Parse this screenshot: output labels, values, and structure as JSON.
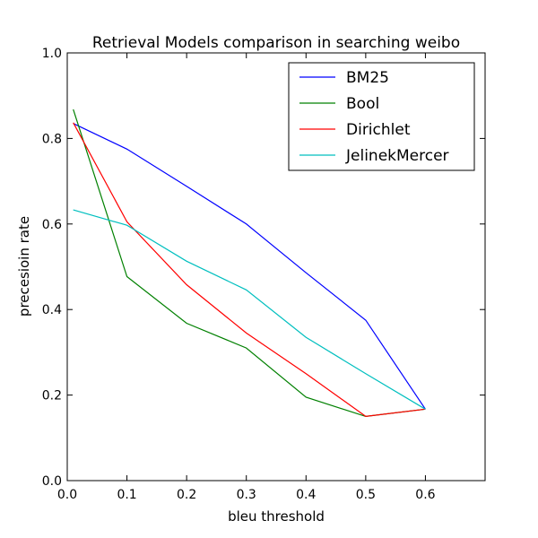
{
  "chart_data": {
    "type": "line",
    "title": "Retrieval Models comparison in searching weibo",
    "xlabel": "bleu threshold",
    "ylabel": "precesioin rate",
    "xlim": [
      0.0,
      0.7
    ],
    "ylim": [
      0.0,
      1.0
    ],
    "xticks": [
      0.0,
      0.1,
      0.2,
      0.3,
      0.4,
      0.5,
      0.6
    ],
    "xtick_labels": [
      "0.0",
      "0.1",
      "0.2",
      "0.3",
      "0.4",
      "0.5",
      "0.6"
    ],
    "yticks": [
      0.0,
      0.2,
      0.4,
      0.6,
      0.8,
      1.0
    ],
    "ytick_labels": [
      "0.0",
      "0.2",
      "0.4",
      "0.6",
      "0.8",
      "1.0"
    ],
    "grid": false,
    "legend_position": "top-right",
    "x": [
      0.01,
      0.1,
      0.2,
      0.3,
      0.4,
      0.5,
      0.6
    ],
    "series": [
      {
        "name": "BM25",
        "color": "#0000ff",
        "values": [
          0.835,
          0.775,
          0.688,
          0.6,
          0.486,
          0.375,
          0.167
        ]
      },
      {
        "name": "Bool",
        "color": "#008000",
        "values": [
          0.868,
          0.477,
          0.368,
          0.31,
          0.195,
          0.15,
          0.167
        ]
      },
      {
        "name": "Dirichlet",
        "color": "#ff0000",
        "values": [
          0.837,
          0.605,
          0.458,
          0.345,
          0.25,
          0.15,
          0.167
        ]
      },
      {
        "name": "JelinekMercer",
        "color": "#00bfbf",
        "values": [
          0.633,
          0.597,
          0.513,
          0.446,
          0.335,
          0.25,
          0.167
        ]
      }
    ]
  }
}
